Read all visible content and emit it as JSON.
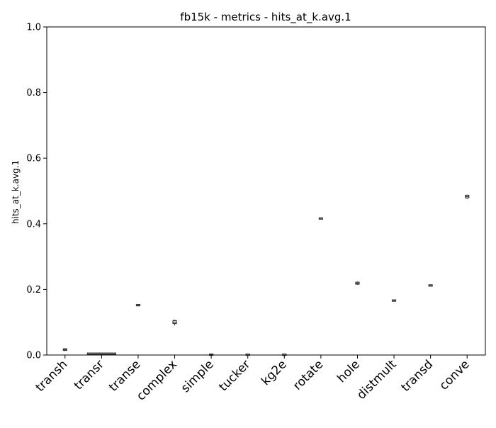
{
  "chart_data": {
    "type": "box",
    "title": "fb15k - metrics - hits_at_k.avg.1",
    "xlabel": "",
    "ylabel": "hits_at_k.avg.1",
    "ylim": [
      0,
      1
    ],
    "y_ticks": [
      "0.0",
      "0.2",
      "0.4",
      "0.6",
      "0.8",
      "1.0"
    ],
    "grid": false,
    "categories": [
      "transh",
      "transr",
      "transe",
      "complex",
      "simple",
      "tucker",
      "kg2e",
      "rotate",
      "hole",
      "distmult",
      "transd",
      "conve"
    ],
    "series": [
      {
        "values": [
          {
            "min": 0.012,
            "q1": 0.014,
            "median": 0.016,
            "q3": 0.019,
            "max": 0.021
          },
          {
            "min": 0.001,
            "q1": 0.002,
            "median": 0.003,
            "q3": 0.004,
            "max": 0.005
          },
          {
            "min": 0.151,
            "q1": 0.151,
            "median": 0.152,
            "q3": 0.152,
            "max": 0.153
          },
          {
            "min": 0.09,
            "q1": 0.096,
            "median": 0.1,
            "q3": 0.105,
            "max": 0.108
          },
          {
            "min": 0.0,
            "q1": 0.0,
            "median": 0.001,
            "q3": 0.001,
            "max": 0.001
          },
          {
            "min": 0.0,
            "q1": 0.0,
            "median": 0.0,
            "q3": 0.001,
            "max": 0.001
          },
          {
            "min": 0.0,
            "q1": 0.0,
            "median": 0.0,
            "q3": 0.001,
            "max": 0.001
          },
          {
            "min": 0.413,
            "q1": 0.414,
            "median": 0.415,
            "q3": 0.416,
            "max": 0.417
          },
          {
            "min": 0.214,
            "q1": 0.216,
            "median": 0.219,
            "q3": 0.222,
            "max": 0.224
          },
          {
            "min": 0.163,
            "q1": 0.164,
            "median": 0.165,
            "q3": 0.166,
            "max": 0.167
          },
          {
            "min": 0.209,
            "q1": 0.21,
            "median": 0.211,
            "q3": 0.212,
            "max": 0.213
          },
          {
            "min": 0.476,
            "q1": 0.479,
            "median": 0.483,
            "q3": 0.487,
            "max": 0.489
          }
        ]
      }
    ]
  }
}
